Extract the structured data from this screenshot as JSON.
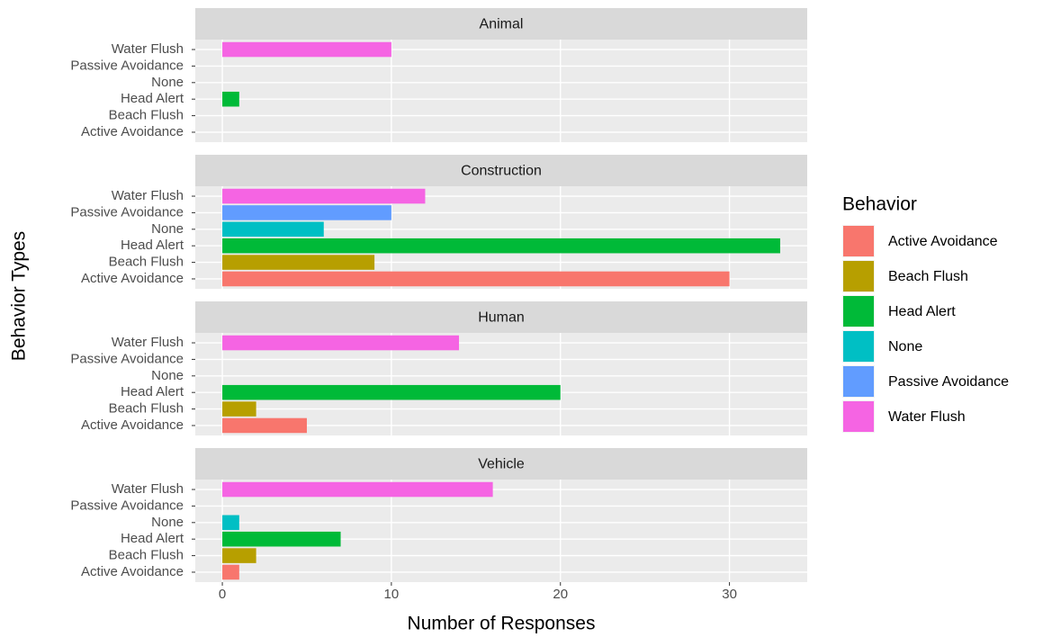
{
  "chart_data": {
    "type": "bar",
    "orientation": "horizontal",
    "x_label": "Number of Responses",
    "y_label": "Behavior Types",
    "legend_title": "Behavior",
    "legend_position": "right",
    "categories": [
      "Active Avoidance",
      "Beach Flush",
      "Head Alert",
      "None",
      "Passive Avoidance",
      "Water Flush"
    ],
    "colors": [
      "#F8766D",
      "#B79F00",
      "#00BA38",
      "#00BFC4",
      "#619CFF",
      "#F564E3"
    ],
    "xlim": [
      -1.6,
      34.6
    ],
    "xticks": [
      0,
      10,
      20,
      30
    ],
    "grid": true,
    "facets": [
      {
        "title": "Animal",
        "values": [
          null,
          null,
          1,
          null,
          null,
          10
        ]
      },
      {
        "title": "Construction",
        "values": [
          30,
          9,
          33,
          6,
          10,
          12
        ]
      },
      {
        "title": "Human",
        "values": [
          5,
          2,
          20,
          null,
          null,
          14
        ]
      },
      {
        "title": "Vehicle",
        "values": [
          1,
          2,
          7,
          1,
          null,
          16
        ]
      }
    ]
  }
}
